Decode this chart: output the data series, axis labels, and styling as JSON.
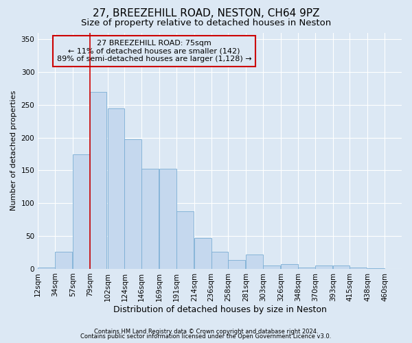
{
  "title1": "27, BREEZEHILL ROAD, NESTON, CH64 9PZ",
  "title2": "Size of property relative to detached houses in Neston",
  "xlabel": "Distribution of detached houses by size in Neston",
  "ylabel": "Number of detached properties",
  "footnote1": "Contains HM Land Registry data © Crown copyright and database right 2024.",
  "footnote2": "Contains public sector information licensed under the Open Government Licence v3.0.",
  "annotation_line1": "27 BREEZEHILL ROAD: 75sqm",
  "annotation_line2": "← 11% of detached houses are smaller (142)",
  "annotation_line3": "89% of semi-detached houses are larger (1,128) →",
  "bar_color": "#c5d8ee",
  "bar_edge_color": "#7aadd4",
  "vline_color": "#cc0000",
  "vline_x": 79,
  "categories": [
    "12sqm",
    "34sqm",
    "57sqm",
    "79sqm",
    "102sqm",
    "124sqm",
    "146sqm",
    "169sqm",
    "191sqm",
    "214sqm",
    "236sqm",
    "258sqm",
    "281sqm",
    "303sqm",
    "326sqm",
    "348sqm",
    "370sqm",
    "393sqm",
    "415sqm",
    "438sqm",
    "460sqm"
  ],
  "bin_edges": [
    12,
    34,
    57,
    79,
    102,
    124,
    146,
    169,
    191,
    214,
    236,
    258,
    281,
    303,
    326,
    348,
    370,
    393,
    415,
    438,
    460
  ],
  "bin_width": 22,
  "values": [
    2,
    26,
    175,
    270,
    245,
    198,
    153,
    153,
    88,
    47,
    26,
    14,
    22,
    5,
    7,
    2,
    5,
    5,
    2,
    1,
    0
  ],
  "ylim": [
    0,
    360
  ],
  "yticks": [
    0,
    50,
    100,
    150,
    200,
    250,
    300,
    350
  ],
  "xlim_left": 12,
  "xlim_right": 482,
  "bg_color": "#dce8f4",
  "grid_color": "#ffffff",
  "title1_fontsize": 11,
  "title2_fontsize": 9.5,
  "xlabel_fontsize": 9,
  "ylabel_fontsize": 8,
  "tick_fontsize": 7.5,
  "annot_fontsize": 8,
  "footnote_fontsize": 6
}
